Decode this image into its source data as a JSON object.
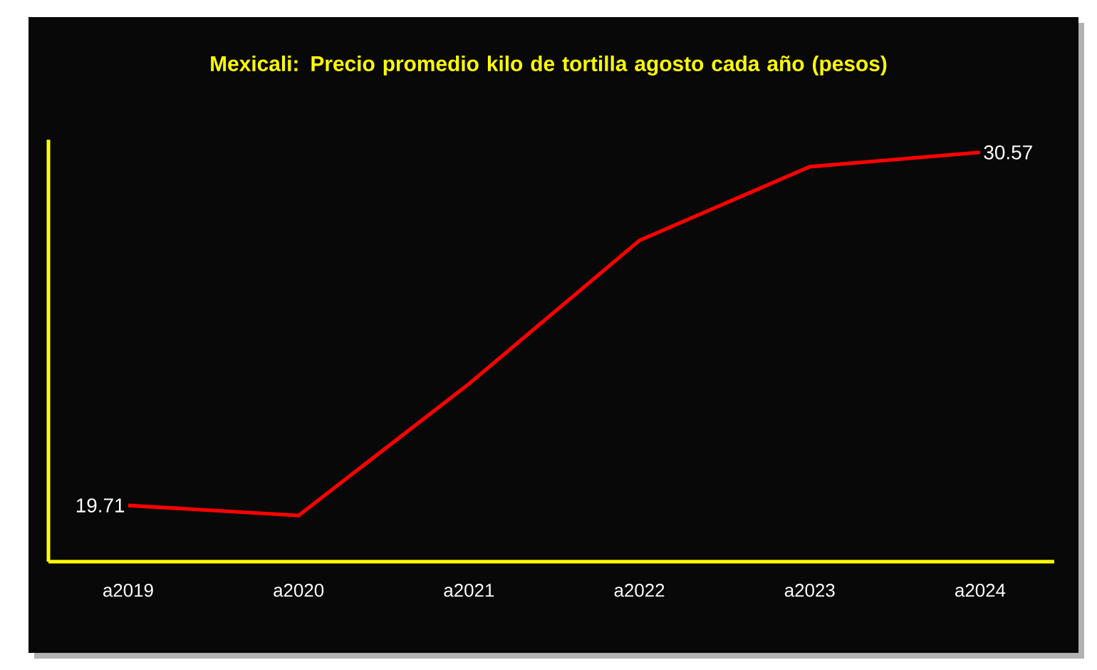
{
  "chart_data": {
    "type": "line",
    "title": "Mexicali: Precio promedio kilo de tortilla agosto cada año (pesos)",
    "categories": [
      "a2019",
      "a2020",
      "a2021",
      "a2022",
      "a2023",
      "a2024"
    ],
    "series": [
      {
        "color": "#ff0000",
        "values": [
          19.71,
          19.4,
          23.45,
          27.86,
          30.13,
          30.57
        ],
        "value_labels": [
          "19.71",
          null,
          null,
          null,
          null,
          "30.57"
        ]
      }
    ],
    "ylim": [
      17.98,
      30.96
    ],
    "tick_labels": "x"
  }
}
